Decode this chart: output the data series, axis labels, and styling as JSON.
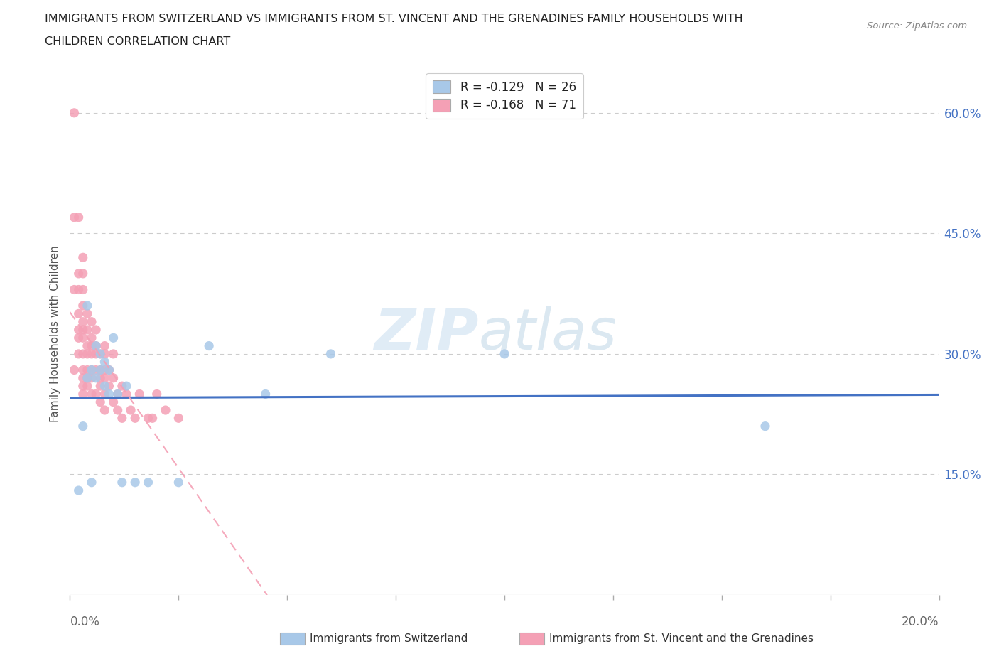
{
  "title_line1": "IMMIGRANTS FROM SWITZERLAND VS IMMIGRANTS FROM ST. VINCENT AND THE GRENADINES FAMILY HOUSEHOLDS WITH",
  "title_line2": "CHILDREN CORRELATION CHART",
  "source": "Source: ZipAtlas.com",
  "ylabel": "Family Households with Children",
  "xlim": [
    0.0,
    0.2
  ],
  "ylim": [
    0.0,
    0.65
  ],
  "color_swiss": "#a8c8e8",
  "color_stvincent": "#f4a0b5",
  "line_color_swiss": "#4472c4",
  "line_color_stvincent": "#f4a0b5",
  "swiss_x": [
    0.002,
    0.003,
    0.004,
    0.004,
    0.005,
    0.005,
    0.006,
    0.006,
    0.007,
    0.007,
    0.008,
    0.008,
    0.009,
    0.009,
    0.01,
    0.011,
    0.012,
    0.013,
    0.015,
    0.018,
    0.025,
    0.032,
    0.045,
    0.06,
    0.1,
    0.16
  ],
  "swiss_y": [
    0.13,
    0.21,
    0.27,
    0.36,
    0.14,
    0.28,
    0.27,
    0.31,
    0.28,
    0.3,
    0.26,
    0.29,
    0.25,
    0.28,
    0.32,
    0.25,
    0.14,
    0.26,
    0.14,
    0.14,
    0.14,
    0.31,
    0.25,
    0.3,
    0.3,
    0.21
  ],
  "stvincent_x": [
    0.001,
    0.001,
    0.001,
    0.001,
    0.002,
    0.002,
    0.002,
    0.002,
    0.002,
    0.002,
    0.002,
    0.003,
    0.003,
    0.003,
    0.003,
    0.003,
    0.003,
    0.003,
    0.003,
    0.003,
    0.003,
    0.003,
    0.003,
    0.004,
    0.004,
    0.004,
    0.004,
    0.004,
    0.004,
    0.004,
    0.005,
    0.005,
    0.005,
    0.005,
    0.005,
    0.005,
    0.005,
    0.006,
    0.006,
    0.006,
    0.006,
    0.006,
    0.007,
    0.007,
    0.007,
    0.007,
    0.007,
    0.008,
    0.008,
    0.008,
    0.008,
    0.008,
    0.008,
    0.009,
    0.009,
    0.01,
    0.01,
    0.01,
    0.011,
    0.011,
    0.012,
    0.012,
    0.013,
    0.014,
    0.015,
    0.016,
    0.018,
    0.019,
    0.02,
    0.022,
    0.025
  ],
  "stvincent_y": [
    0.6,
    0.47,
    0.38,
    0.28,
    0.47,
    0.4,
    0.38,
    0.35,
    0.33,
    0.32,
    0.3,
    0.42,
    0.4,
    0.38,
    0.36,
    0.34,
    0.33,
    0.32,
    0.3,
    0.28,
    0.27,
    0.26,
    0.25,
    0.35,
    0.33,
    0.31,
    0.3,
    0.28,
    0.27,
    0.26,
    0.34,
    0.32,
    0.31,
    0.3,
    0.28,
    0.27,
    0.25,
    0.33,
    0.31,
    0.3,
    0.28,
    0.25,
    0.3,
    0.28,
    0.27,
    0.26,
    0.24,
    0.31,
    0.3,
    0.28,
    0.27,
    0.25,
    0.23,
    0.28,
    0.26,
    0.3,
    0.27,
    0.24,
    0.25,
    0.23,
    0.26,
    0.22,
    0.25,
    0.23,
    0.22,
    0.25,
    0.22,
    0.22,
    0.25,
    0.23,
    0.22
  ],
  "legend_labels": [
    "R = -0.129   N = 26",
    "R = -0.168   N = 71"
  ],
  "bottom_legend_swiss": "Immigrants from Switzerland",
  "bottom_legend_sv": "Immigrants from St. Vincent and the Grenadines",
  "grid_color": "#cccccc",
  "ytick_right_color": "#4472c4",
  "xtick_color": "#666666",
  "watermark_zip_color": "#c8ddf0",
  "watermark_atlas_color": "#b0cce0"
}
